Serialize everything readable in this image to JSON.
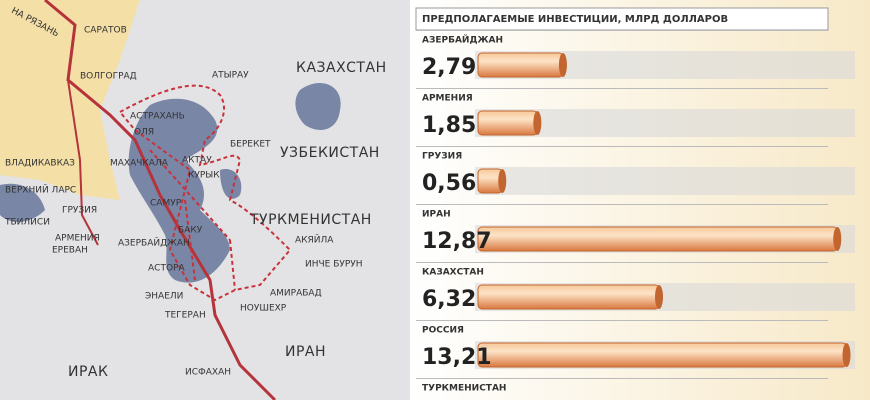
{
  "map": {
    "labels": [
      "НА РЯЗАНЬ",
      "САРАТОВ",
      "ВОЛГОГРАД",
      "АСТРАХАНЬ",
      "ОЛЯ",
      "АТЫРАУ",
      "КАЗАХСТАН",
      "БЕРЕКЕТ",
      "УЗБЕКИСТАН",
      "АКТАУ",
      "КУРЫК",
      "МАХАЧКАЛА",
      "ВЛАДИКАВКАЗ",
      "ВЕРХНИЙ ЛАРС",
      "САМУР",
      "ГРУЗИЯ",
      "ТБИЛИСИ",
      "АРМЕНИЯ",
      "ЕРЕВАН",
      "АЗЕРБАЙДЖАН",
      "БАКУ",
      "ТУРКМЕНИСТАН",
      "АКЯЙЛА",
      "ИНЧЕ БУРУН",
      "АСТОРА",
      "АМИРАБАД",
      "ЭНАЕЛИ",
      "НОУШЕХР",
      "ТЕГЕРАН",
      "ИРАН",
      "ИРАК",
      "ИСФАХАН"
    ]
  },
  "chart_data": {
    "type": "bar",
    "orientation": "horizontal",
    "title": "ПРЕДПОЛАГАЕМЫЕ ИНВЕСТИЦИИ, МЛРД ДОЛЛАРОВ",
    "categories": [
      "АЗЕРБАЙДЖАН",
      "АРМЕНИЯ",
      "ГРУЗИЯ",
      "ИРАН",
      "КАЗАХСТАН",
      "РОССИЯ",
      "ТУРКМЕНИСТАН"
    ],
    "values": [
      2.79,
      1.85,
      0.56,
      12.87,
      6.32,
      13.21,
      null
    ],
    "value_labels": [
      "2,79",
      "1,85",
      "0,56",
      "12,87",
      "6,32",
      "13,21",
      null
    ],
    "color": "#e8935a"
  }
}
